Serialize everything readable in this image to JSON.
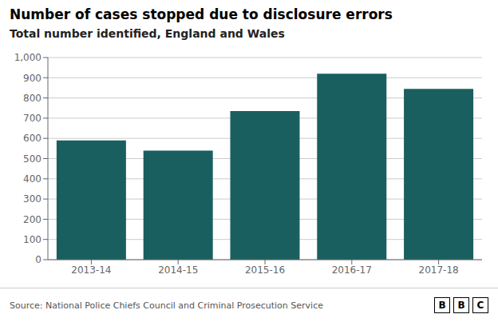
{
  "chart_data": {
    "type": "bar",
    "title": "Number of cases stopped due to disclosure errors",
    "subtitle": "Total number identified, England and Wales",
    "source": "Source: National Police Chiefs Council and Criminal Prosecution Service",
    "annotations": [
      "B",
      "B",
      "C"
    ],
    "categories": [
      "2013-14",
      "2014-15",
      "2015-16",
      "2016-17",
      "2017-18"
    ],
    "values": [
      590,
      540,
      735,
      920,
      845
    ],
    "color": "#1a5f5f",
    "ylim": [
      0,
      1000
    ],
    "yticks": [
      0,
      100,
      200,
      300,
      400,
      500,
      600,
      700,
      800,
      900,
      {
        "value": 1000,
        "label": "1,000"
      }
    ],
    "grid": true
  }
}
